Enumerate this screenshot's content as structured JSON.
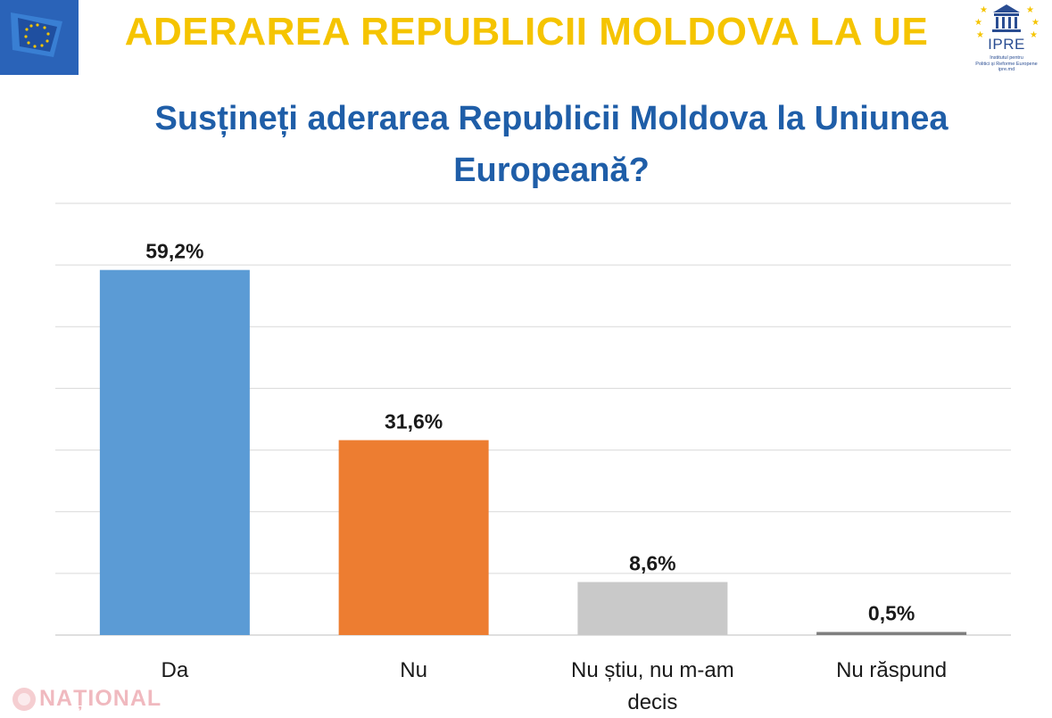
{
  "header": {
    "title": "ADERAREA REPUBLICII MOLDOVA LA UE",
    "title_color": "#f5c400"
  },
  "logo": {
    "name": "IPRE",
    "subtitle_line1": "Institutul pentru",
    "subtitle_line2": "Politici și Reforme Europene",
    "subtitle_line3": "ipre.md"
  },
  "watermark": {
    "text": "NAȚIONAL"
  },
  "chart_data": {
    "type": "bar",
    "title": "Susțineți aderarea Republicii Moldova la Uniunea Europeană?",
    "categories": [
      "Da",
      "Nu",
      "Nu știu, nu m-am decis",
      "Nu răspund"
    ],
    "values": [
      59.2,
      31.6,
      8.6,
      0.5
    ],
    "value_labels": [
      "59,2%",
      "31,6%",
      "8,6%",
      "0,5%"
    ],
    "colors": [
      "#5b9bd5",
      "#ed7d31",
      "#c9c9c9",
      "#7f7f7f"
    ],
    "ylim": [
      0,
      70
    ],
    "grid": true,
    "legend": "none"
  }
}
